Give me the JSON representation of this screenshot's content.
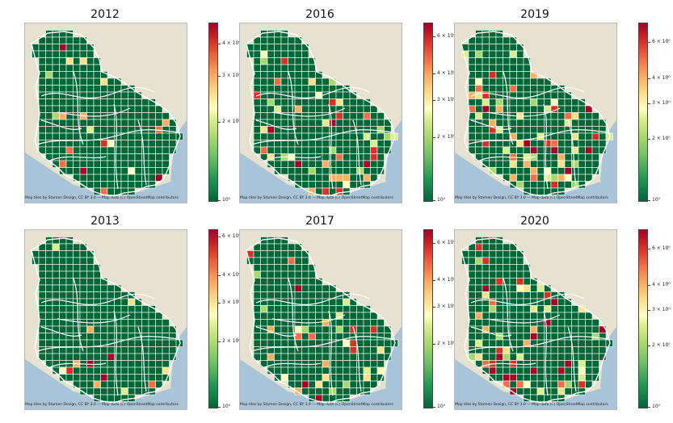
{
  "attribution": "Map tiles by Stamen Design, CC BY 3.0 — Map data (C) OpenStreetMap contributors",
  "colormap": [
    "#006837",
    "#1a9850",
    "#66bd63",
    "#a6d96a",
    "#d9ef8b",
    "#ffffbf",
    "#fee08b",
    "#fdae61",
    "#f46d43",
    "#d73027",
    "#a50026"
  ],
  "panels": [
    {
      "title": "2012",
      "ticks": [
        "4 × 10⁰",
        "3 × 10⁰",
        "2 × 10⁰",
        "10⁰"
      ],
      "tickvals": [
        4,
        3,
        2,
        1
      ],
      "cmax": 4.8,
      "seed": 3,
      "density": 0.035
    },
    {
      "title": "2016",
      "ticks": [
        "6 × 10⁰",
        "4 × 10⁰",
        "3 × 10⁰",
        "2 × 10⁰",
        "10⁰"
      ],
      "tickvals": [
        6,
        4,
        3,
        2,
        1
      ],
      "cmax": 7,
      "seed": 11,
      "density": 0.09
    },
    {
      "title": "2019",
      "ticks": [
        "6 × 10⁰",
        "4 × 10⁰",
        "3 × 10⁰",
        "2 × 10⁰",
        "10⁰"
      ],
      "tickvals": [
        6,
        4,
        3,
        2,
        1
      ],
      "cmax": 7.5,
      "seed": 19,
      "density": 0.14
    },
    {
      "title": "2013",
      "ticks": [
        "6 × 10⁰",
        "4 × 10⁰",
        "3 × 10⁰",
        "2 × 10⁰",
        "10⁰"
      ],
      "tickvals": [
        6,
        4,
        3,
        2,
        1
      ],
      "cmax": 6.5,
      "seed": 5,
      "density": 0.03
    },
    {
      "title": "2017",
      "ticks": [
        "6 × 10⁰",
        "4 × 10⁰",
        "3 × 10⁰",
        "2 × 10⁰",
        "10⁰"
      ],
      "tickvals": [
        6,
        4,
        3,
        2,
        1
      ],
      "cmax": 7,
      "seed": 23,
      "density": 0.1
    },
    {
      "title": "2020",
      "ticks": [
        "6 × 10⁰",
        "4 × 10⁰",
        "3 × 10⁰",
        "2 × 10⁰",
        "10⁰"
      ],
      "tickvals": [
        6,
        4,
        3,
        2,
        1
      ],
      "cmax": 7.5,
      "seed": 31,
      "density": 0.13
    }
  ]
}
